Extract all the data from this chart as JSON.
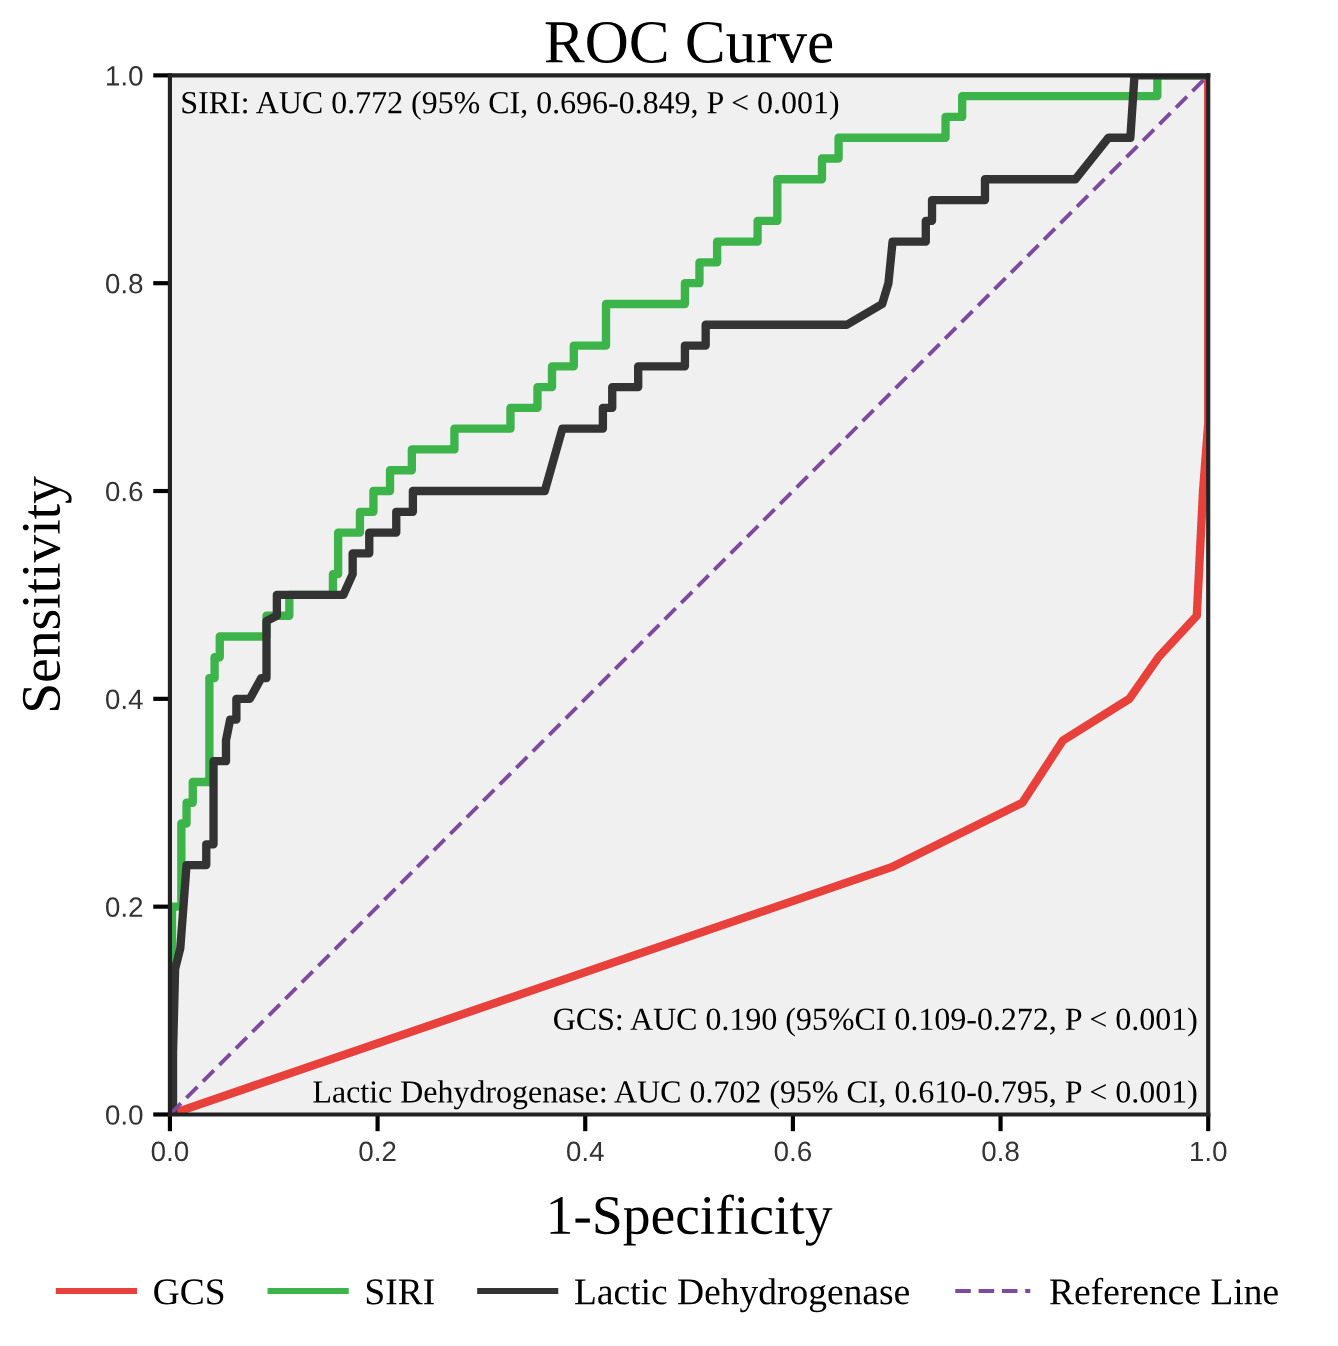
{
  "chart_data": {
    "type": "line",
    "title": "ROC Curve",
    "xlabel": "1-Specificity",
    "ylabel": "Sensitivity",
    "xlim": [
      0,
      1
    ],
    "ylim": [
      0,
      1
    ],
    "xticks": [
      {
        "value": 0,
        "label": "0.0"
      },
      {
        "value": 0.2,
        "label": "0.2"
      },
      {
        "value": 0.4,
        "label": "0.4"
      },
      {
        "value": 0.6,
        "label": "0.6"
      },
      {
        "value": 0.8,
        "label": "0.8"
      },
      {
        "value": 1,
        "label": "1.0"
      }
    ],
    "yticks": [
      {
        "value": 0,
        "label": "0.0"
      },
      {
        "value": 0.2,
        "label": "0.2"
      },
      {
        "value": 0.4,
        "label": "0.4"
      },
      {
        "value": 0.6,
        "label": "0.6"
      },
      {
        "value": 0.8,
        "label": "0.8"
      },
      {
        "value": 1,
        "label": "1.0"
      }
    ],
    "grid": false,
    "legend": "bottom",
    "marker": "none",
    "annotations": [
      "SIRI: AUC 0.772 (95% CI, 0.696-0.849, P < 0.001)",
      "GCS: AUC 0.190 (95%CI 0.109-0.272, P < 0.001)",
      "Lactic Dehydrogenase: AUC 0.702 (95% CI, 0.610-0.795, P < 0.001)"
    ],
    "series": [
      {
        "name": "GCS",
        "color": "#e8413c",
        "line_style": "solid",
        "x": [
          0,
          0.695,
          0.821,
          0.86,
          0.924,
          0.952,
          0.989,
          0.995,
          1,
          1
        ],
        "values": [
          0,
          0.238,
          0.3,
          0.36,
          0.4,
          0.44,
          0.48,
          0.6,
          0.665,
          1
        ]
      },
      {
        "name": "SIRI",
        "type": "step",
        "color": "#3cb44a",
        "line_style": "solid",
        "x": [
          0,
          0.002,
          0.011,
          0.016,
          0.022,
          0.038,
          0.043,
          0.048,
          0.093,
          0.115,
          0.157,
          0.162,
          0.183,
          0.196,
          0.212,
          0.233,
          0.274,
          0.328,
          0.354,
          0.368,
          0.389,
          0.42,
          0.496,
          0.51,
          0.527,
          0.566,
          0.585,
          0.628,
          0.644,
          0.747,
          0.763,
          0.951,
          1
        ],
        "values": [
          0,
          0.2,
          0.28,
          0.3,
          0.32,
          0.42,
          0.44,
          0.46,
          0.48,
          0.5,
          0.52,
          0.56,
          0.58,
          0.6,
          0.62,
          0.64,
          0.66,
          0.68,
          0.7,
          0.72,
          0.74,
          0.78,
          0.8,
          0.82,
          0.84,
          0.86,
          0.9,
          0.92,
          0.94,
          0.96,
          0.98,
          1,
          1
        ]
      },
      {
        "name": "Lactic Dehydrogenase",
        "color": "#333333",
        "line_style": "solid",
        "x": [
          0,
          0.003,
          0.003,
          0.005,
          0.01,
          0.013,
          0.016,
          0.035,
          0.035,
          0.042,
          0.042,
          0.054,
          0.054,
          0.058,
          0.064,
          0.064,
          0.077,
          0.088,
          0.093,
          0.093,
          0.103,
          0.103,
          0.167,
          0.176,
          0.176,
          0.192,
          0.192,
          0.218,
          0.218,
          0.234,
          0.234,
          0.361,
          0.378,
          0.417,
          0.417,
          0.426,
          0.426,
          0.451,
          0.451,
          0.496,
          0.496,
          0.516,
          0.516,
          0.652,
          0.686,
          0.692,
          0.696,
          0.728,
          0.728,
          0.734,
          0.734,
          0.785,
          0.785,
          0.872,
          0.888,
          0.904,
          0.925,
          0.929,
          1
        ],
        "values": [
          0,
          0,
          0.06,
          0.14,
          0.16,
          0.2,
          0.24,
          0.24,
          0.26,
          0.26,
          0.34,
          0.34,
          0.36,
          0.38,
          0.38,
          0.4,
          0.4,
          0.42,
          0.42,
          0.475,
          0.48,
          0.5,
          0.5,
          0.52,
          0.54,
          0.54,
          0.56,
          0.56,
          0.58,
          0.58,
          0.6,
          0.6,
          0.66,
          0.66,
          0.68,
          0.68,
          0.7,
          0.7,
          0.72,
          0.72,
          0.74,
          0.74,
          0.76,
          0.76,
          0.78,
          0.8,
          0.84,
          0.84,
          0.86,
          0.86,
          0.88,
          0.88,
          0.9,
          0.9,
          0.92,
          0.94,
          0.94,
          1,
          1
        ]
      },
      {
        "name": "Reference Line",
        "color": "#7d4a9e",
        "line_style": "dashed",
        "x": [
          0,
          1
        ],
        "values": [
          0,
          1
        ]
      }
    ]
  }
}
